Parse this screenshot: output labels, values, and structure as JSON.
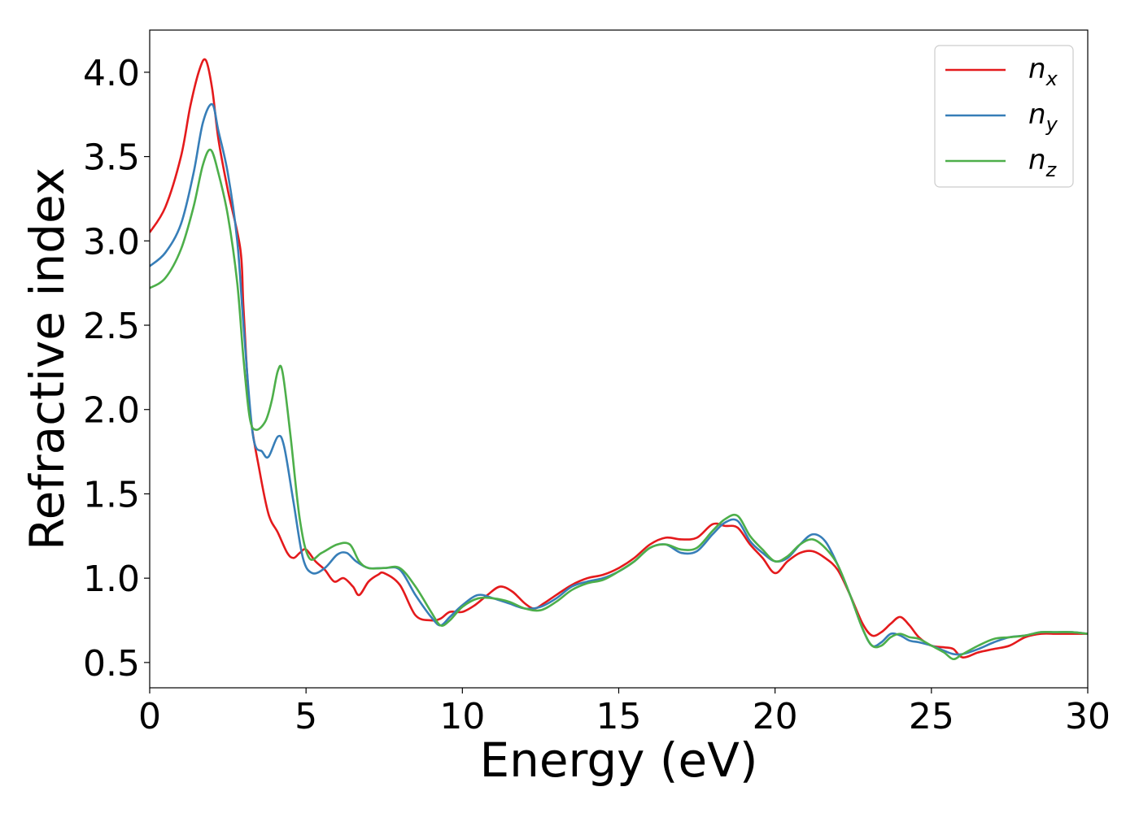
{
  "chart_data": {
    "type": "line",
    "xlabel": "Energy (eV)",
    "ylabel": "Refractive index",
    "xlim": [
      0,
      30
    ],
    "ylim": [
      0.35,
      4.25
    ],
    "xticks": [
      0,
      5,
      10,
      15,
      20,
      25,
      30
    ],
    "xtick_labels": [
      "0",
      "5",
      "10",
      "15",
      "20",
      "25",
      "30"
    ],
    "yticks": [
      0.5,
      1.0,
      1.5,
      2.0,
      2.5,
      3.0,
      3.5,
      4.0
    ],
    "ytick_labels": [
      "0.5",
      "1.0",
      "1.5",
      "2.0",
      "2.5",
      "3.0",
      "3.5",
      "4.0"
    ],
    "grid": false,
    "legend_position": "top-right",
    "series": [
      {
        "name": "n",
        "subscript": "x",
        "color": "#e41a1c",
        "x": [
          0,
          0.5,
          1.0,
          1.3,
          1.6,
          1.8,
          2.0,
          2.2,
          2.5,
          2.9,
          3.0,
          3.2,
          3.5,
          3.8,
          4.1,
          4.4,
          4.6,
          4.8,
          5.0,
          5.3,
          5.6,
          5.9,
          6.2,
          6.5,
          6.7,
          7.0,
          7.3,
          7.5,
          8.0,
          8.5,
          9.0,
          9.3,
          9.6,
          10.0,
          10.4,
          10.8,
          11.2,
          11.6,
          12.0,
          12.3,
          12.6,
          13.0,
          13.5,
          14.0,
          14.5,
          15.0,
          15.5,
          16.0,
          16.5,
          17.0,
          17.5,
          18.0,
          18.4,
          18.8,
          19.2,
          19.6,
          20.0,
          20.4,
          20.8,
          21.2,
          21.6,
          22.0,
          22.4,
          22.8,
          23.1,
          23.4,
          23.7,
          24.0,
          24.3,
          24.6,
          25.0,
          25.4,
          25.7,
          26.0,
          26.5,
          27.0,
          27.5,
          28.0,
          28.5,
          29.0,
          29.5,
          30.0
        ],
        "values": [
          3.05,
          3.2,
          3.5,
          3.8,
          4.02,
          4.07,
          3.9,
          3.6,
          3.3,
          2.95,
          2.6,
          2.0,
          1.65,
          1.38,
          1.27,
          1.15,
          1.12,
          1.15,
          1.17,
          1.1,
          1.05,
          0.98,
          1.0,
          0.95,
          0.9,
          0.98,
          1.02,
          1.03,
          0.96,
          0.78,
          0.75,
          0.76,
          0.8,
          0.8,
          0.84,
          0.9,
          0.95,
          0.92,
          0.85,
          0.82,
          0.85,
          0.9,
          0.96,
          1.0,
          1.02,
          1.06,
          1.12,
          1.2,
          1.24,
          1.23,
          1.24,
          1.32,
          1.31,
          1.3,
          1.2,
          1.12,
          1.03,
          1.1,
          1.15,
          1.16,
          1.12,
          1.05,
          0.9,
          0.73,
          0.66,
          0.68,
          0.73,
          0.77,
          0.72,
          0.65,
          0.6,
          0.59,
          0.58,
          0.53,
          0.56,
          0.58,
          0.6,
          0.65,
          0.67,
          0.67,
          0.67,
          0.67
        ]
      },
      {
        "name": "n",
        "subscript": "y",
        "color": "#377eb8",
        "x": [
          0,
          0.5,
          1.0,
          1.4,
          1.7,
          2.0,
          2.2,
          2.5,
          2.8,
          3.0,
          3.3,
          3.6,
          3.8,
          4.1,
          4.3,
          4.6,
          4.9,
          5.2,
          5.6,
          6.0,
          6.3,
          6.6,
          7.0,
          7.5,
          8.0,
          8.5,
          9.0,
          9.3,
          9.6,
          10.0,
          10.5,
          11.0,
          11.5,
          12.0,
          12.5,
          13.0,
          13.5,
          14.0,
          14.5,
          15.0,
          15.5,
          16.0,
          16.5,
          17.0,
          17.5,
          18.0,
          18.4,
          18.8,
          19.2,
          19.6,
          20.0,
          20.4,
          20.8,
          21.2,
          21.6,
          22.0,
          22.4,
          22.8,
          23.1,
          23.4,
          23.7,
          24.0,
          24.3,
          24.6,
          25.0,
          25.4,
          25.7,
          26.0,
          26.5,
          27.0,
          27.5,
          28.0,
          28.5,
          29.0,
          29.5,
          30.0
        ],
        "values": [
          2.85,
          2.93,
          3.1,
          3.4,
          3.7,
          3.81,
          3.65,
          3.4,
          3.0,
          2.5,
          1.85,
          1.75,
          1.72,
          1.84,
          1.78,
          1.45,
          1.12,
          1.03,
          1.06,
          1.14,
          1.15,
          1.1,
          1.06,
          1.06,
          1.05,
          0.9,
          0.77,
          0.72,
          0.77,
          0.84,
          0.9,
          0.88,
          0.85,
          0.82,
          0.83,
          0.88,
          0.95,
          0.98,
          1.0,
          1.04,
          1.1,
          1.18,
          1.2,
          1.15,
          1.16,
          1.26,
          1.33,
          1.34,
          1.22,
          1.15,
          1.1,
          1.12,
          1.2,
          1.26,
          1.22,
          1.08,
          0.9,
          0.7,
          0.6,
          0.62,
          0.67,
          0.66,
          0.63,
          0.62,
          0.6,
          0.57,
          0.55,
          0.55,
          0.58,
          0.62,
          0.65,
          0.66,
          0.68,
          0.68,
          0.68,
          0.67
        ]
      },
      {
        "name": "n",
        "subscript": "z",
        "color": "#4daf4a",
        "x": [
          0,
          0.5,
          1.0,
          1.4,
          1.7,
          1.95,
          2.2,
          2.5,
          2.8,
          3.0,
          3.2,
          3.4,
          3.7,
          3.9,
          4.1,
          4.25,
          4.5,
          4.8,
          5.1,
          5.5,
          6.0,
          6.4,
          6.7,
          7.0,
          7.5,
          8.0,
          8.5,
          9.0,
          9.3,
          9.6,
          10.0,
          10.5,
          11.0,
          11.5,
          12.0,
          12.5,
          13.0,
          13.5,
          14.0,
          14.5,
          15.0,
          15.5,
          16.0,
          16.5,
          17.0,
          17.5,
          18.0,
          18.4,
          18.8,
          19.2,
          19.6,
          20.0,
          20.4,
          20.8,
          21.2,
          21.6,
          22.0,
          22.4,
          22.8,
          23.1,
          23.4,
          23.7,
          24.0,
          24.3,
          24.6,
          25.0,
          25.4,
          25.7,
          26.0,
          26.5,
          27.0,
          27.5,
          28.0,
          28.5,
          29.0,
          29.5,
          30.0
        ],
        "values": [
          2.72,
          2.78,
          2.95,
          3.2,
          3.45,
          3.54,
          3.4,
          3.15,
          2.75,
          2.3,
          1.95,
          1.88,
          1.93,
          2.05,
          2.23,
          2.22,
          1.85,
          1.35,
          1.12,
          1.15,
          1.2,
          1.2,
          1.1,
          1.06,
          1.06,
          1.06,
          0.95,
          0.8,
          0.72,
          0.75,
          0.83,
          0.88,
          0.88,
          0.86,
          0.82,
          0.81,
          0.86,
          0.93,
          0.97,
          0.99,
          1.04,
          1.1,
          1.18,
          1.2,
          1.17,
          1.18,
          1.28,
          1.35,
          1.37,
          1.25,
          1.17,
          1.1,
          1.13,
          1.2,
          1.23,
          1.18,
          1.08,
          0.9,
          0.7,
          0.6,
          0.6,
          0.65,
          0.67,
          0.65,
          0.64,
          0.6,
          0.56,
          0.52,
          0.55,
          0.6,
          0.64,
          0.65,
          0.66,
          0.68,
          0.68,
          0.68,
          0.67
        ]
      }
    ]
  }
}
